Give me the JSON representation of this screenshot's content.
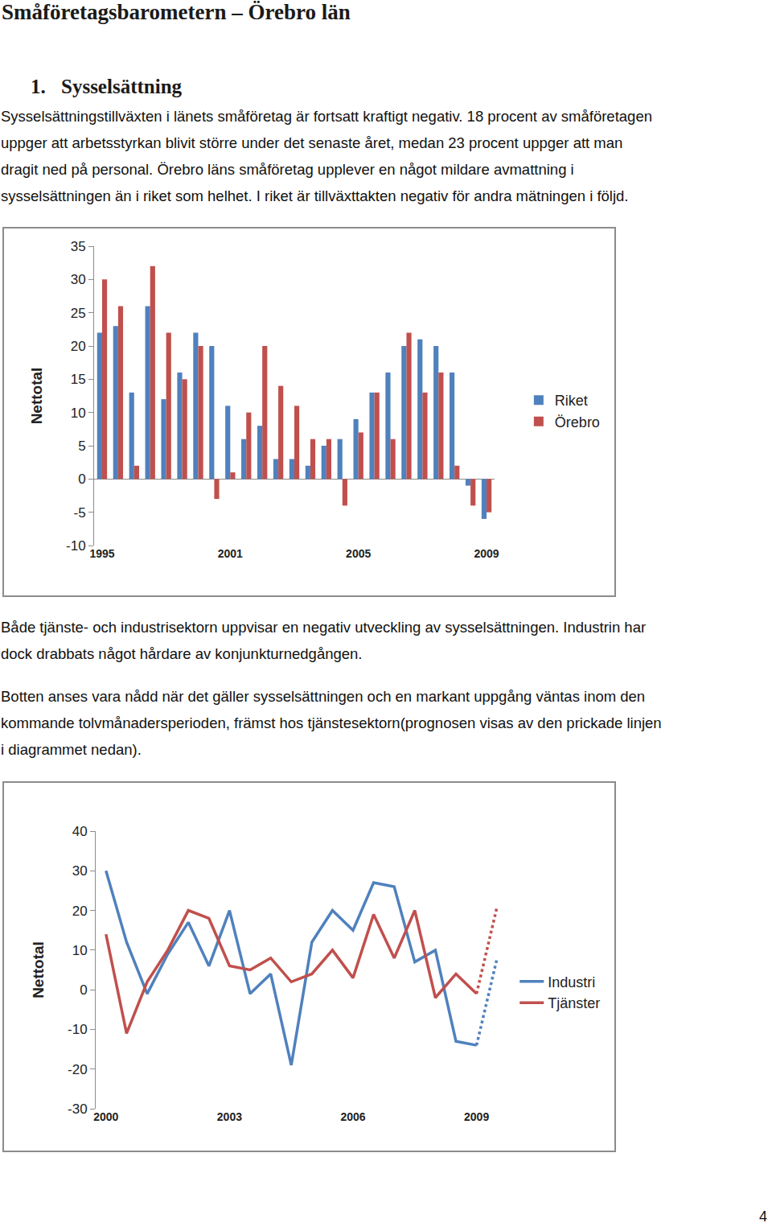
{
  "document": {
    "title": "Småföretagsbarometern – Örebro län",
    "heading_number": "1.",
    "heading": "Sysselsättning",
    "paragraph_1": [
      "Sysselsättningstillväxten i länets småföretag är fortsatt kraftigt negativ. 18 procent av småföretagen",
      "uppger att arbetsstyrkan blivit större under det senaste året, medan 23 procent uppger att man",
      "dragit ned på personal. Örebro läns småföretag upplever en något mildare avmattning i",
      "sysselsättningen än i riket som helhet. I riket är tillväxttakten negativ för andra mätningen i följd."
    ],
    "paragraph_2": [
      "Både tjänste- och industrisektorn uppvisar en negativ utveckling av sysselsättningen. Industrin har",
      "dock drabbats något hårdare av konjunkturnedgången."
    ],
    "paragraph_3": [
      "Botten anses vara nådd när det gäller sysselsättningen och en markant uppgång väntas inom den",
      "kommande tolvmånadersperioden, främst hos tjänstesektorn(prognosen visas av den prickade linjen",
      "i diagrammet nedan)."
    ],
    "page_number": "4"
  },
  "chart_data": [
    {
      "type": "bar",
      "y_label": "Nettotal",
      "categories": [
        "1995",
        null,
        null,
        null,
        null,
        null,
        null,
        null,
        "2001",
        null,
        null,
        null,
        null,
        null,
        null,
        null,
        "2005",
        null,
        null,
        null,
        null,
        null,
        null,
        null,
        "2009"
      ],
      "series": [
        {
          "name": "Riket",
          "color": "#4f81bd",
          "values": [
            22,
            23,
            13,
            26,
            12,
            16,
            22,
            20,
            11,
            6,
            8,
            3,
            3,
            2,
            5,
            6,
            9,
            13,
            16,
            20,
            21,
            20,
            16,
            -1,
            -6
          ]
        },
        {
          "name": "Örebro",
          "color": "#c0504d",
          "values": [
            30,
            26,
            2,
            32,
            22,
            15,
            20,
            -3,
            1,
            10,
            20,
            14,
            11,
            6,
            6,
            -4,
            7,
            13,
            6,
            22,
            13,
            16,
            2,
            -4,
            -5
          ]
        }
      ],
      "ylim": [
        -10,
        35
      ],
      "yticks": [
        -10,
        -5,
        0,
        5,
        10,
        15,
        20,
        25,
        30,
        35
      ],
      "grid": false,
      "legend": "right"
    },
    {
      "type": "line",
      "y_label": "Nettotal",
      "categories": [
        "2000",
        null,
        null,
        null,
        null,
        null,
        "2003",
        null,
        null,
        null,
        null,
        null,
        "2006",
        null,
        null,
        null,
        null,
        null,
        "2009",
        null
      ],
      "series": [
        {
          "name": "Industri",
          "color": "#4f81bd",
          "values": [
            30,
            12,
            -1,
            9,
            17,
            6,
            20,
            -1,
            4,
            -19,
            12,
            20,
            15,
            27,
            26,
            7,
            10,
            -13,
            -14,
            null
          ],
          "forecast": [
            null,
            null,
            null,
            null,
            null,
            null,
            null,
            null,
            null,
            null,
            null,
            null,
            null,
            null,
            null,
            null,
            null,
            null,
            null,
            8
          ]
        },
        {
          "name": "Tjänster",
          "color": "#c0504d",
          "values": [
            14,
            -11,
            2,
            10,
            20,
            18,
            6,
            5,
            8,
            2,
            4,
            10,
            3,
            19,
            8,
            20,
            -2,
            4,
            -1,
            null
          ],
          "forecast": [
            null,
            null,
            null,
            null,
            null,
            null,
            null,
            null,
            null,
            null,
            null,
            null,
            null,
            null,
            null,
            null,
            null,
            null,
            null,
            21
          ]
        }
      ],
      "ylim": [
        -30,
        40
      ],
      "yticks": [
        -30,
        -20,
        -10,
        0,
        10,
        20,
        30,
        40
      ],
      "grid": false,
      "legend": "right"
    }
  ]
}
